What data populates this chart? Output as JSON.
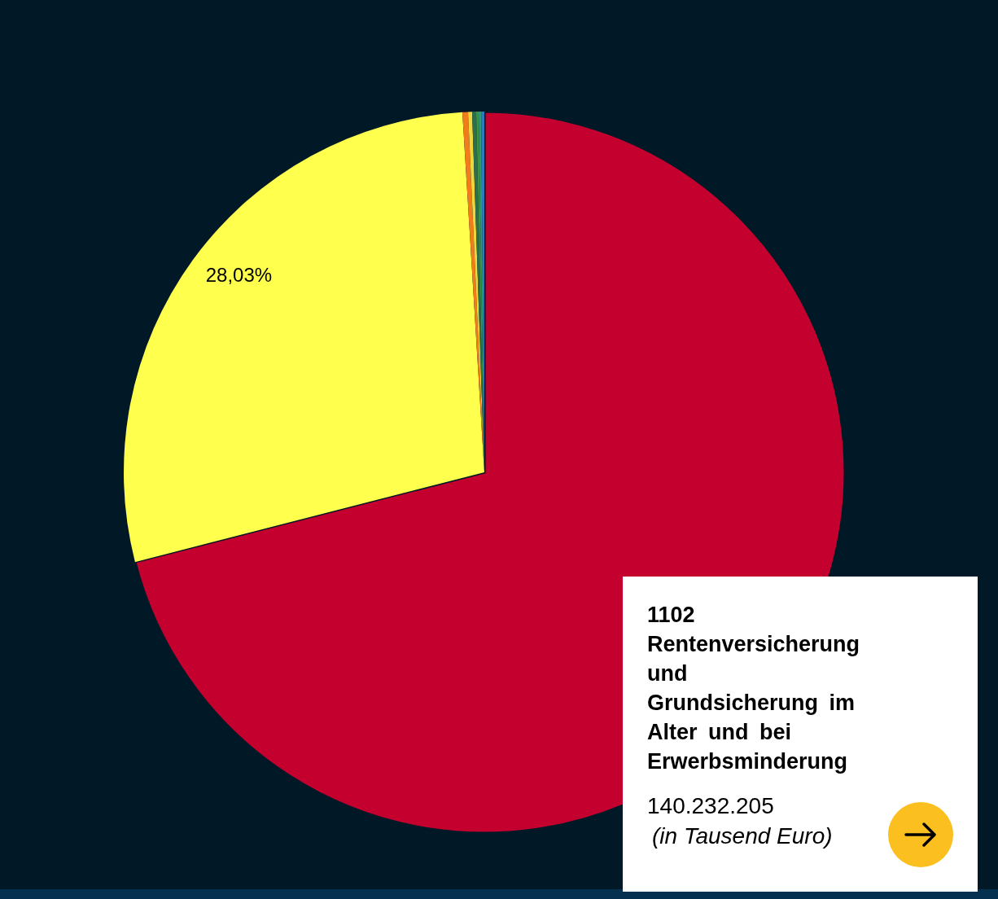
{
  "chart_data": {
    "type": "pie",
    "categories": [
      "1102 Rentenversicherung und Grundsicherung im Alter und bei Erwerbsminderung",
      null,
      null,
      null,
      null,
      null,
      null,
      null
    ],
    "values": [
      71.0,
      28.03,
      0.25,
      0.18,
      0.18,
      0.11,
      0.11,
      0.14
    ],
    "colors": [
      "#c4002f",
      "#ffff4d",
      "#f07c1b",
      "#eed63c",
      "#2f6e4a",
      "#3c9440",
      "#2e9a78",
      "#2b7bbd"
    ],
    "value_labels": [
      null,
      "28,03%",
      null,
      null,
      null,
      null,
      null,
      null
    ],
    "annotations": [
      "140.232.205",
      "(in Tausend Euro)"
    ]
  }
}
